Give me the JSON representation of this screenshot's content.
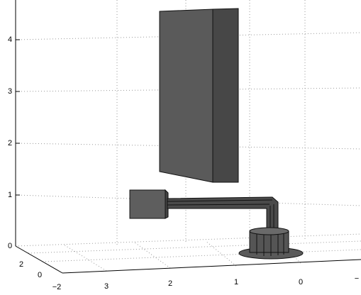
{
  "axes": {
    "z_ticks": [
      "0",
      "1",
      "2",
      "3",
      "4"
    ],
    "x_ticks": [
      "2",
      "0",
      "−2"
    ],
    "y_ticks": [
      "3",
      "2",
      "1",
      "0",
      "−"
    ]
  }
}
